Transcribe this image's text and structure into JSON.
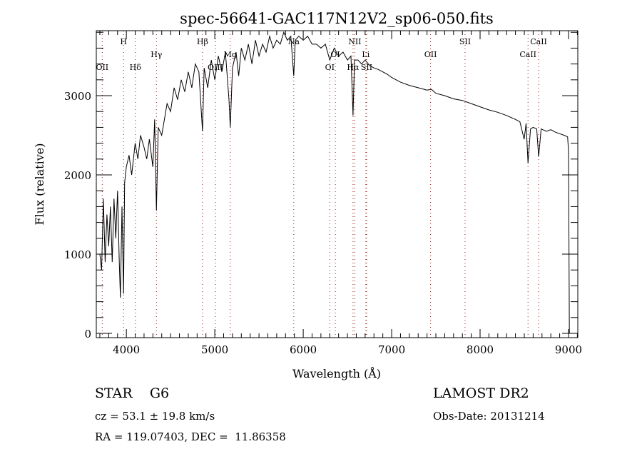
{
  "chart_data": {
    "type": "line",
    "title": "spec-56641-GAC117N12V2_sp06-050.fits",
    "xlabel": "Wavelength (Å)",
    "ylabel": "Flux (relative)",
    "xlim": [
      3660,
      9105
    ],
    "ylim": [
      -54,
      3820
    ],
    "xticks": [
      4000,
      5000,
      6000,
      7000,
      8000,
      9000
    ],
    "xtick_labels": [
      "4000",
      "5000",
      "6000",
      "7000",
      "8000",
      "9000"
    ],
    "yticks": [
      0,
      1000,
      2000,
      3000
    ],
    "ytick_labels": [
      "0",
      "1000",
      "2000",
      "3000"
    ],
    "grid": false,
    "series": [
      {
        "name": "spectrum",
        "x": [
          3700,
          3720,
          3740,
          3760,
          3780,
          3800,
          3820,
          3840,
          3860,
          3880,
          3900,
          3920,
          3933,
          3950,
          3968,
          3980,
          4000,
          4030,
          4060,
          4100,
          4130,
          4160,
          4200,
          4230,
          4260,
          4300,
          4320,
          4340,
          4360,
          4400,
          4430,
          4460,
          4500,
          4540,
          4580,
          4620,
          4660,
          4700,
          4740,
          4780,
          4820,
          4861,
          4880,
          4920,
          4960,
          5000,
          5040,
          5080,
          5120,
          5160,
          5175,
          5200,
          5240,
          5270,
          5300,
          5340,
          5380,
          5420,
          5460,
          5500,
          5540,
          5580,
          5620,
          5660,
          5700,
          5740,
          5780,
          5820,
          5860,
          5893,
          5910,
          5950,
          6000,
          6050,
          6100,
          6150,
          6200,
          6250,
          6300,
          6350,
          6400,
          6450,
          6500,
          6540,
          6563,
          6580,
          6620,
          6660,
          6700,
          6750,
          6800,
          6850,
          6900,
          6950,
          7000,
          7100,
          7200,
          7300,
          7400,
          7450,
          7500,
          7600,
          7700,
          7800,
          7900,
          8000,
          8100,
          8200,
          8300,
          8400,
          8450,
          8498,
          8520,
          8542,
          8570,
          8600,
          8640,
          8662,
          8690,
          8750,
          8800,
          8850,
          8900,
          8950,
          8990,
          9000,
          9010
        ],
        "y": [
          1000,
          800,
          1700,
          900,
          1500,
          1100,
          1600,
          900,
          1700,
          1200,
          1800,
          900,
          450,
          1600,
          500,
          1900,
          2100,
          2250,
          2000,
          2400,
          2200,
          2500,
          2350,
          2200,
          2450,
          2100,
          2700,
          1550,
          2600,
          2500,
          2700,
          2900,
          2800,
          3100,
          2950,
          3200,
          3050,
          3300,
          3100,
          3400,
          3300,
          2550,
          3350,
          3100,
          3450,
          3200,
          3500,
          3300,
          3550,
          2950,
          2600,
          3350,
          3550,
          3250,
          3600,
          3450,
          3650,
          3400,
          3700,
          3500,
          3650,
          3550,
          3750,
          3600,
          3700,
          3650,
          3800,
          3700,
          3750,
          3250,
          3700,
          3750,
          3700,
          3750,
          3650,
          3650,
          3600,
          3650,
          3450,
          3600,
          3500,
          3550,
          3450,
          3500,
          2750,
          3450,
          3450,
          3400,
          3450,
          3380,
          3350,
          3330,
          3300,
          3270,
          3230,
          3170,
          3130,
          3100,
          3070,
          3080,
          3030,
          3000,
          2960,
          2940,
          2900,
          2860,
          2820,
          2790,
          2750,
          2700,
          2670,
          2450,
          2650,
          2150,
          2580,
          2600,
          2580,
          2230,
          2580,
          2550,
          2570,
          2540,
          2520,
          2500,
          2480,
          2300,
          0
        ]
      }
    ],
    "line_markers": [
      {
        "label": "OII",
        "wavelength": 3727,
        "row": 3
      },
      {
        "label": "H",
        "wavelength": 3968,
        "row": 1
      },
      {
        "label": "Hδ",
        "wavelength": 4102,
        "row": 3
      },
      {
        "label": "Hγ",
        "wavelength": 4340,
        "row": 2
      },
      {
        "label": "Hβ",
        "wavelength": 4861,
        "row": 1
      },
      {
        "label": "OIII",
        "wavelength": 5007,
        "row": 3
      },
      {
        "label": "Mg",
        "wavelength": 5175,
        "row": 2
      },
      {
        "label": "Na",
        "wavelength": 5893,
        "row": 1
      },
      {
        "label": "OI",
        "wavelength": 6300,
        "row": 3
      },
      {
        "label": "OI",
        "wavelength": 6363,
        "row": 2
      },
      {
        "label": "NII",
        "wavelength": 6583,
        "row": 1
      },
      {
        "label": "Hα",
        "wavelength": 6563,
        "row": 3
      },
      {
        "label": "Li",
        "wavelength": 6708,
        "row": 2
      },
      {
        "label": "SII",
        "wavelength": 6717,
        "row": 3
      },
      {
        "label": "OII",
        "wavelength": 7440,
        "row": 2
      },
      {
        "label": "SII",
        "wavelength": 7830,
        "row": 1
      },
      {
        "label": "CaII",
        "wavelength": 8542,
        "row": 2
      },
      {
        "label": "CaII",
        "wavelength": 8662,
        "row": 1
      }
    ]
  },
  "info": {
    "object_class": "STAR    G6",
    "redshift": "cz = 53.1 ± 19.8 km/s",
    "coords": "RA = 119.07403, DEC =  11.86358",
    "survey": "LAMOST DR2",
    "obs_date": "Obs-Date: 20131214"
  }
}
